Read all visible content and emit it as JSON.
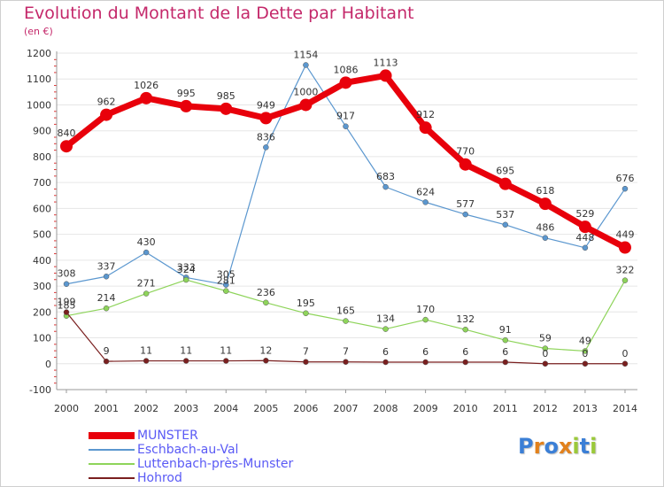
{
  "header": {
    "title": "Evolution du Montant de la Dette par Habitant",
    "subtitle": "(en €)"
  },
  "chart_data": {
    "type": "line",
    "title": "Evolution du Montant de la Dette par Habitant",
    "ylabel": "(en €)",
    "xlabel": "",
    "x": [
      2000,
      2001,
      2002,
      2003,
      2004,
      2005,
      2006,
      2007,
      2008,
      2009,
      2010,
      2011,
      2012,
      2013,
      2014
    ],
    "ylim": [
      -100,
      1200
    ],
    "yticks": [
      -100,
      0,
      100,
      200,
      300,
      400,
      500,
      600,
      700,
      800,
      900,
      1000,
      1100,
      1200
    ],
    "grid": "horizontal",
    "legend_position": "bottom-left",
    "series": [
      {
        "name": "MUNSTER",
        "color": "#e8000b",
        "emphasis": true,
        "values": [
          840,
          962,
          1026,
          995,
          985,
          949,
          1000,
          1086,
          1113,
          912,
          770,
          695,
          618,
          529,
          449
        ]
      },
      {
        "name": "Eschbach-au-Val",
        "color": "#5b97cf",
        "emphasis": false,
        "values": [
          308,
          337,
          430,
          333,
          305,
          836,
          1154,
          917,
          683,
          624,
          577,
          537,
          486,
          448,
          676
        ]
      },
      {
        "name": "Luttenbach-près-Munster",
        "color": "#8ed45a",
        "emphasis": false,
        "values": [
          185,
          214,
          271,
          324,
          281,
          236,
          195,
          165,
          134,
          170,
          132,
          91,
          59,
          49,
          322
        ]
      },
      {
        "name": "Hohrod",
        "color": "#7a1f1f",
        "emphasis": false,
        "values": [
          199,
          9,
          11,
          11,
          11,
          12,
          7,
          7,
          6,
          6,
          6,
          6,
          0,
          0,
          0
        ]
      }
    ]
  },
  "logo": {
    "letters": [
      "P",
      "r",
      "o",
      "x",
      "i",
      "t",
      "i"
    ],
    "colors": [
      "#3b7fd6",
      "#e2811c",
      "#3b7fd6",
      "#e2811c",
      "#9bc93a",
      "#3b7fd6",
      "#9bc93a"
    ]
  }
}
